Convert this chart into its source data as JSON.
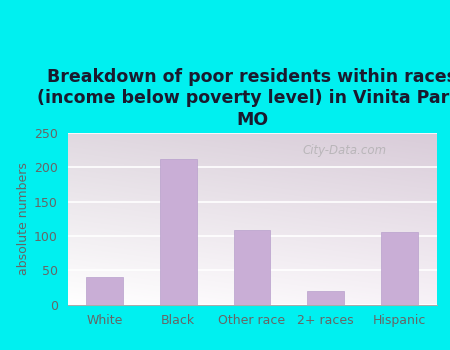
{
  "title": "Breakdown of poor residents within races\n(income below poverty level) in Vinita Park,\nMO",
  "categories": [
    "White",
    "Black",
    "Other race",
    "2+ races",
    "Hispanic"
  ],
  "values": [
    40,
    212,
    109,
    20,
    106
  ],
  "bar_color": "#c9aed6",
  "bar_edge_color": "#b8a0cc",
  "ylabel": "absolute numbers",
  "ylim": [
    0,
    250
  ],
  "yticks": [
    0,
    50,
    100,
    150,
    200,
    250
  ],
  "title_fontsize": 12.5,
  "title_color": "#1a1a2e",
  "outer_bg": "#00f0f0",
  "watermark": "City-Data.com",
  "tick_color": "#666666",
  "grid_color": "#cccccc"
}
